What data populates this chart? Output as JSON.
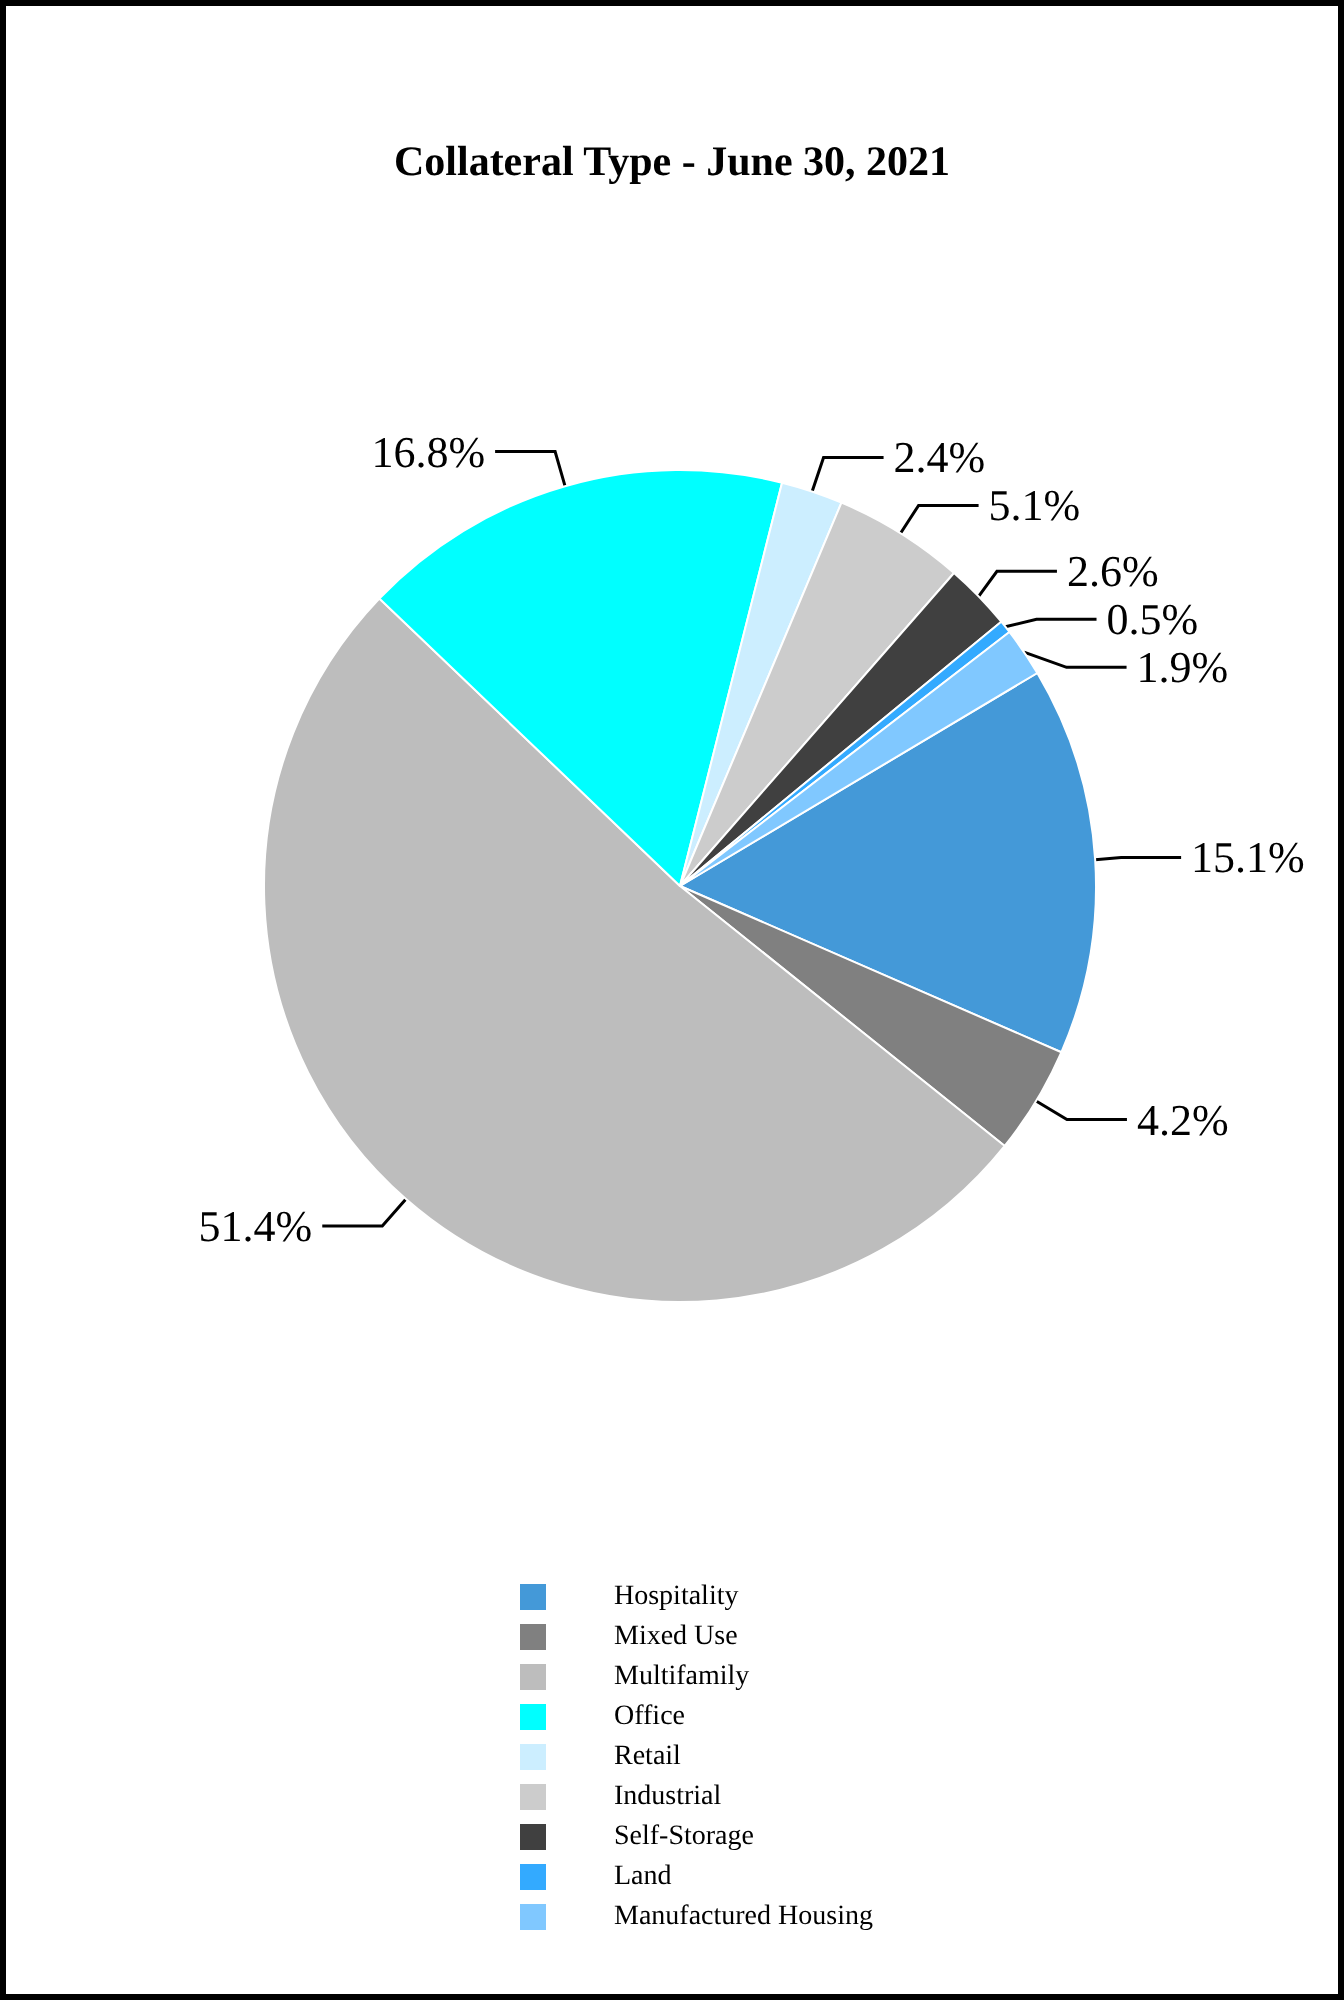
{
  "chart_data": {
    "type": "pie",
    "title": "Collateral Type - June 30, 2021",
    "categories": [
      "Hospitality",
      "Mixed Use",
      "Multifamily",
      "Office",
      "Retail",
      "Industrial",
      "Self-Storage",
      "Land",
      "Manufactured Housing"
    ],
    "values": [
      15.1,
      4.2,
      51.4,
      16.8,
      2.4,
      5.1,
      2.6,
      0.5,
      1.9
    ],
    "value_labels": [
      "15.1%",
      "4.2%",
      "51.4%",
      "16.8%",
      "2.4%",
      "5.1%",
      "2.6%",
      "0.5%",
      "1.9%"
    ],
    "colors": [
      "#4499d8",
      "#808080",
      "#bdbdbd",
      "#00ffff",
      "#cceeff",
      "#cccccc",
      "#404040",
      "#33aaff",
      "#80c8ff"
    ],
    "legend": "bottom"
  }
}
